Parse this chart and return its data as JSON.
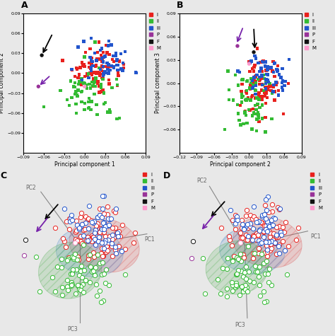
{
  "categories": [
    "I",
    "II",
    "III",
    "P",
    "F",
    "M"
  ],
  "colors": {
    "I": "#e8211d",
    "II": "#33bb33",
    "III": "#2255cc",
    "P": "#993399",
    "F": "#111111",
    "M": "#ff99cc"
  },
  "panel_A": {
    "xlabel": "Principal component 1",
    "ylabel": "Principal component 2",
    "xlim": [
      -0.09,
      0.09
    ],
    "ylim": [
      -0.12,
      0.09
    ],
    "xticks": [
      -0.09,
      -0.06,
      -0.03,
      0.0,
      0.03,
      0.06,
      0.09
    ],
    "yticks": [
      -0.09,
      -0.06,
      -0.03,
      0.0,
      0.03,
      0.06,
      0.09
    ]
  },
  "panel_B": {
    "xlabel": "Principal component 2",
    "ylabel": "Principal component 3",
    "xlim": [
      -0.12,
      0.09
    ],
    "ylim": [
      -0.09,
      0.09
    ],
    "xticks": [
      -0.12,
      -0.09,
      -0.06,
      -0.03,
      0.0,
      0.03,
      0.06,
      0.09
    ],
    "yticks": [
      -0.06,
      -0.03,
      0.0,
      0.03,
      0.06,
      0.09
    ]
  },
  "bg_color": "#e8e8e8",
  "seed": 42,
  "marker_size_2d": 10,
  "marker_size_3d": 20
}
